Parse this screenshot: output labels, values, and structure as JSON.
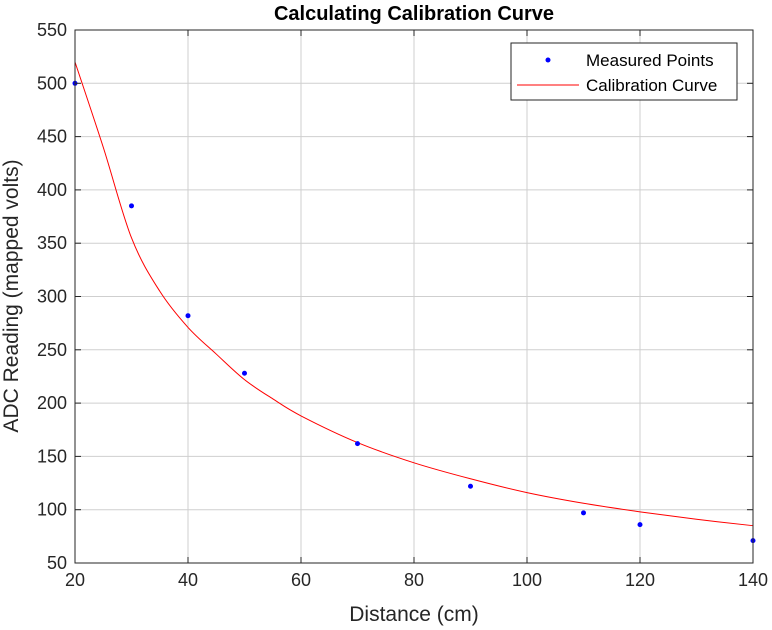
{
  "chart_data": {
    "type": "scatter",
    "title": "Calculating Calibration Curve",
    "xlabel": "Distance (cm)",
    "ylabel": "ADC Reading (mapped volts)",
    "xlim": [
      20,
      140
    ],
    "ylim": [
      50,
      550
    ],
    "xticks": [
      20,
      40,
      60,
      80,
      100,
      120,
      140
    ],
    "yticks": [
      50,
      100,
      150,
      200,
      250,
      300,
      350,
      400,
      450,
      500,
      550
    ],
    "grid": true,
    "legend_position": "top-right",
    "series": [
      {
        "name": "Measured Points",
        "kind": "scatter",
        "color": "#0000ff",
        "points": [
          {
            "x": 20,
            "y": 500
          },
          {
            "x": 30,
            "y": 385
          },
          {
            "x": 40,
            "y": 282
          },
          {
            "x": 50,
            "y": 228
          },
          {
            "x": 70,
            "y": 162
          },
          {
            "x": 90,
            "y": 122
          },
          {
            "x": 110,
            "y": 97
          },
          {
            "x": 120,
            "y": 86
          },
          {
            "x": 140,
            "y": 71
          }
        ]
      },
      {
        "name": "Calibration Curve",
        "kind": "line",
        "color": "#ff0000",
        "points": [
          {
            "x": 20,
            "y": 520
          },
          {
            "x": 25,
            "y": 440
          },
          {
            "x": 30,
            "y": 355
          },
          {
            "x": 35,
            "y": 305
          },
          {
            "x": 40,
            "y": 271
          },
          {
            "x": 45,
            "y": 246
          },
          {
            "x": 50,
            "y": 222
          },
          {
            "x": 55,
            "y": 204
          },
          {
            "x": 60,
            "y": 188
          },
          {
            "x": 70,
            "y": 163
          },
          {
            "x": 80,
            "y": 144
          },
          {
            "x": 90,
            "y": 129
          },
          {
            "x": 100,
            "y": 116
          },
          {
            "x": 110,
            "y": 106
          },
          {
            "x": 120,
            "y": 98
          },
          {
            "x": 130,
            "y": 91
          },
          {
            "x": 140,
            "y": 85
          }
        ]
      }
    ]
  }
}
